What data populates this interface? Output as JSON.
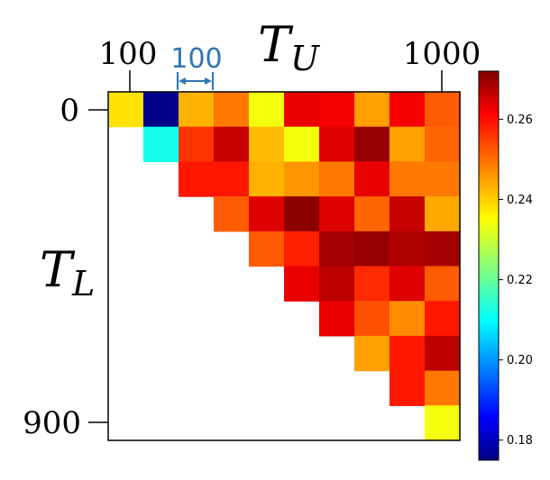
{
  "chart_data": {
    "type": "heatmap",
    "x_label_main": "T",
    "x_label_sub": "U",
    "y_label_main": "T",
    "y_label_sub": "L",
    "x_ticks": [
      {
        "label": "100",
        "value": 100
      },
      {
        "label": "1000",
        "value": 1000
      }
    ],
    "y_ticks": [
      {
        "label": "0",
        "value": 0
      },
      {
        "label": "900",
        "value": 900
      }
    ],
    "step_annotation": "100",
    "colorbar": {
      "min": 0.175,
      "max": 0.272,
      "ticks": [
        {
          "label": "0.18",
          "value": 0.18
        },
        {
          "label": "0.20",
          "value": 0.2
        },
        {
          "label": "0.22",
          "value": 0.22
        },
        {
          "label": "0.24",
          "value": 0.24
        },
        {
          "label": "0.26",
          "value": 0.26
        }
      ]
    },
    "rows": 10,
    "cols": 10,
    "values": [
      [
        0.238,
        0.176,
        0.243,
        0.249,
        0.234,
        0.263,
        0.262,
        0.245,
        0.262,
        0.252
      ],
      [
        null,
        0.212,
        0.256,
        0.266,
        0.242,
        0.234,
        0.264,
        0.27,
        0.245,
        0.251
      ],
      [
        null,
        null,
        0.259,
        0.259,
        0.243,
        0.246,
        0.249,
        0.263,
        0.249,
        0.249
      ],
      [
        null,
        null,
        null,
        0.252,
        0.264,
        0.271,
        0.264,
        0.251,
        0.266,
        0.244
      ],
      [
        null,
        null,
        null,
        null,
        0.252,
        0.258,
        0.269,
        0.27,
        0.268,
        0.269
      ],
      [
        null,
        null,
        null,
        null,
        null,
        0.263,
        0.267,
        0.257,
        0.264,
        0.252
      ],
      [
        null,
        null,
        null,
        null,
        null,
        null,
        0.263,
        0.253,
        0.247,
        0.259
      ],
      [
        null,
        null,
        null,
        null,
        null,
        null,
        null,
        0.245,
        0.259,
        0.267
      ],
      [
        null,
        null,
        null,
        null,
        null,
        null,
        null,
        null,
        0.259,
        0.249
      ],
      [
        null,
        null,
        null,
        null,
        null,
        null,
        null,
        null,
        null,
        0.234
      ]
    ]
  }
}
